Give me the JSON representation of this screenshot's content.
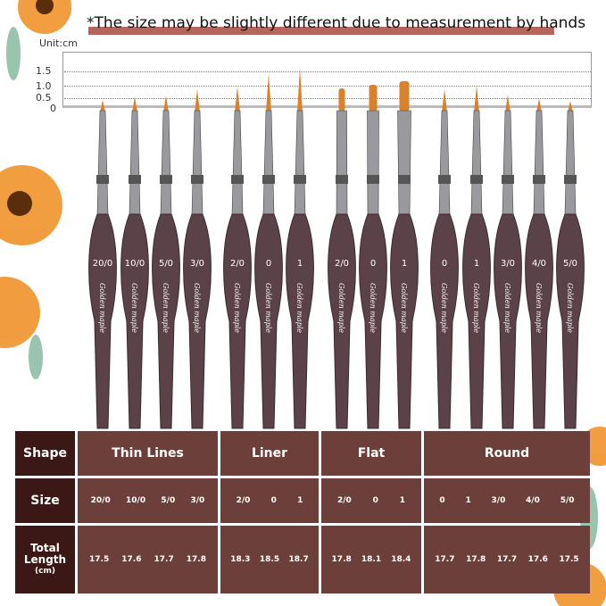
{
  "note": "*The size may be slightly different due to measurement by hands",
  "unit": "Unit:cm",
  "ruler_ticks": [
    "1.5",
    "1.0",
    "0.5",
    "0"
  ],
  "brand": "Golden maple",
  "brush_labels": [
    "20/0",
    "10/0",
    "5/0",
    "3/0",
    "2/0",
    "0",
    "1",
    "2/0",
    "0",
    "1",
    "0",
    "1",
    "3/0",
    "4/0",
    "5/0"
  ],
  "colors": {
    "header_cell": "#3b1815",
    "cell": "#6d3f3a",
    "handle": "#5a4248",
    "note_bar": "#b5655c",
    "bristle": "#d9822b"
  },
  "table": {
    "row_labels": {
      "shape": "Shape",
      "size": "Size",
      "length_line1": "Total",
      "length_line2": "Length",
      "length_unit": "(cm)"
    },
    "groups": [
      {
        "shape": "Thin Lines",
        "sizes": [
          "20/0",
          "10/0",
          "5/0",
          "3/0"
        ],
        "lengths": [
          "17.5",
          "17.6",
          "17.7",
          "17.8"
        ]
      },
      {
        "shape": "Liner",
        "sizes": [
          "2/0",
          "0",
          "1"
        ],
        "lengths": [
          "18.3",
          "18.5",
          "18.7"
        ]
      },
      {
        "shape": "Flat",
        "sizes": [
          "2/0",
          "0",
          "1"
        ],
        "lengths": [
          "17.8",
          "18.1",
          "18.4"
        ]
      },
      {
        "shape": "Round",
        "sizes": [
          "0",
          "1",
          "3/0",
          "4/0",
          "5/0"
        ],
        "lengths": [
          "17.7",
          "17.8",
          "17.7",
          "17.6",
          "17.5"
        ]
      }
    ]
  }
}
